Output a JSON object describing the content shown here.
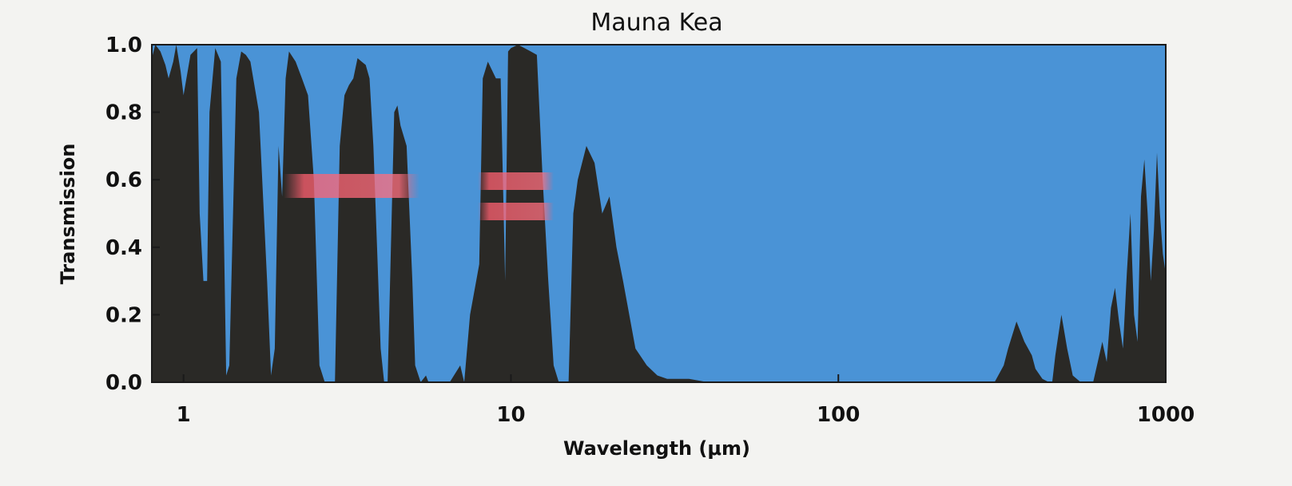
{
  "chart_data": {
    "type": "area",
    "title": "Mauna Kea",
    "xlabel": "Wavelength (μm)",
    "ylabel": "Transmission",
    "x_scale": "log",
    "xlim": [
      0.8,
      1000
    ],
    "ylim": [
      0.0,
      1.0
    ],
    "x_ticks": [
      {
        "value": 1,
        "label": "1"
      },
      {
        "value": 10,
        "label": "10"
      },
      {
        "value": 100,
        "label": "100"
      },
      {
        "value": 1000,
        "label": "1000"
      }
    ],
    "y_ticks": [
      {
        "value": 0.0,
        "label": "0.0"
      },
      {
        "value": 0.2,
        "label": "0.2"
      },
      {
        "value": 0.4,
        "label": "0.4"
      },
      {
        "value": 0.6,
        "label": "0.6"
      },
      {
        "value": 0.8,
        "label": "0.8"
      },
      {
        "value": 1.0,
        "label": "1.0"
      }
    ],
    "grid": false,
    "colors": {
      "plot_background": "#4a93d6",
      "transmission_fill": "#2a2926",
      "band_highlight": "#ff6070"
    },
    "series": [
      {
        "x": [
          0.8,
          0.82,
          0.85,
          0.88,
          0.9,
          0.93,
          0.95,
          0.98,
          1.0,
          1.05,
          1.1,
          1.12,
          1.15,
          1.18,
          1.2,
          1.25,
          1.3,
          1.33,
          1.35,
          1.38,
          1.4,
          1.45,
          1.5,
          1.55,
          1.6,
          1.7,
          1.8,
          1.85,
          1.9,
          1.95,
          2.0,
          2.05,
          2.1,
          2.2,
          2.3,
          2.4,
          2.5,
          2.6,
          2.7,
          2.8,
          2.9,
          3.0,
          3.1,
          3.2,
          3.3,
          3.4,
          3.5,
          3.6,
          3.7,
          3.8,
          3.9,
          4.0,
          4.1,
          4.2,
          4.4,
          4.5,
          4.6,
          4.8,
          5.0,
          5.1,
          5.3,
          5.5,
          5.6,
          5.8,
          6.0,
          6.2,
          6.5,
          7.0,
          7.2,
          7.5,
          8.0,
          8.2,
          8.5,
          9.0,
          9.3,
          9.6,
          9.8,
          10.0,
          10.5,
          11.0,
          11.5,
          12.0,
          12.5,
          13.0,
          13.5,
          14.0,
          14.5,
          15.0,
          15.5,
          16.0,
          17.0,
          18.0,
          19.0,
          20.0,
          21.0,
          22.0,
          24.0,
          26.0,
          28.0,
          30.0,
          35.0,
          40.0,
          45.0,
          100.0,
          200.0,
          300.0,
          320.0,
          330.0,
          350.0,
          370.0,
          390.0,
          400.0,
          420.0,
          440.0,
          450.0,
          460.0,
          480.0,
          500.0,
          520.0,
          550.0,
          580.0,
          600.0,
          620.0,
          640.0,
          660.0,
          680.0,
          700.0,
          720.0,
          740.0,
          760.0,
          780.0,
          800.0,
          820.0,
          840.0,
          860.0,
          880.0,
          900.0,
          920.0,
          940.0,
          960.0,
          980.0,
          1000.0
        ],
        "y": [
          0.96,
          1.0,
          0.98,
          0.94,
          0.9,
          0.95,
          1.0,
          0.92,
          0.85,
          0.97,
          0.99,
          0.5,
          0.3,
          0.3,
          0.8,
          0.99,
          0.95,
          0.4,
          0.02,
          0.05,
          0.3,
          0.9,
          0.98,
          0.97,
          0.95,
          0.8,
          0.3,
          0.02,
          0.1,
          0.7,
          0.55,
          0.9,
          0.98,
          0.95,
          0.9,
          0.85,
          0.6,
          0.05,
          0.0,
          0.0,
          0.0,
          0.7,
          0.85,
          0.88,
          0.9,
          0.96,
          0.95,
          0.94,
          0.9,
          0.7,
          0.4,
          0.1,
          0.0,
          0.0,
          0.8,
          0.82,
          0.76,
          0.7,
          0.3,
          0.05,
          0.0,
          0.02,
          0.0,
          0.0,
          0.0,
          0.0,
          0.0,
          0.05,
          0.0,
          0.2,
          0.35,
          0.9,
          0.95,
          0.9,
          0.9,
          0.3,
          0.98,
          0.99,
          1.0,
          0.99,
          0.98,
          0.97,
          0.6,
          0.3,
          0.05,
          0.0,
          0.0,
          0.0,
          0.5,
          0.6,
          0.7,
          0.65,
          0.5,
          0.55,
          0.4,
          0.3,
          0.1,
          0.05,
          0.02,
          0.01,
          0.01,
          0.0,
          0.0,
          0.0,
          0.0,
          0.0,
          0.05,
          0.1,
          0.18,
          0.12,
          0.08,
          0.04,
          0.01,
          0.0,
          0.0,
          0.08,
          0.2,
          0.1,
          0.02,
          0.0,
          0.0,
          0.0,
          0.06,
          0.12,
          0.06,
          0.22,
          0.28,
          0.18,
          0.1,
          0.32,
          0.5,
          0.2,
          0.12,
          0.55,
          0.66,
          0.5,
          0.3,
          0.45,
          0.68,
          0.5,
          0.38,
          0.32
        ]
      }
    ]
  }
}
